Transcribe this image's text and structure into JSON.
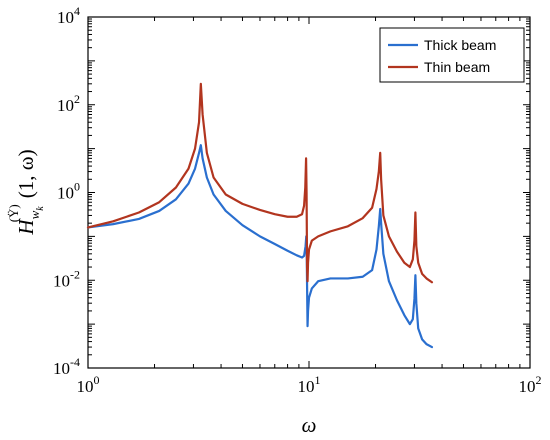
{
  "chart_data": {
    "type": "line",
    "x_scale": "log",
    "y_scale": "log",
    "xlim": [
      1,
      100
    ],
    "ylim": [
      0.0001,
      10000
    ],
    "grid": false,
    "legend_position": "top-right",
    "xlabel": "ω",
    "ylabel": "H_{w_k}^{(Ÿ)} (1, ω)",
    "ylabel_parts": {
      "base": "H",
      "subscript": "w",
      "subsubscript": "k",
      "superscript": "(Ÿ)",
      "args": "(1, ω)"
    },
    "x_ticks": [
      {
        "value": 1,
        "label_base": "10",
        "label_exp": "0"
      },
      {
        "value": 10,
        "label_base": "10",
        "label_exp": "1"
      },
      {
        "value": 100,
        "label_base": "10",
        "label_exp": "2"
      }
    ],
    "y_ticks": [
      {
        "value": 0.0001,
        "label_base": "10",
        "label_exp": "-4"
      },
      {
        "value": 0.01,
        "label_base": "10",
        "label_exp": "-2"
      },
      {
        "value": 1,
        "label_base": "10",
        "label_exp": "0"
      },
      {
        "value": 100,
        "label_base": "10",
        "label_exp": "2"
      },
      {
        "value": 10000,
        "label_base": "10",
        "label_exp": "4"
      }
    ],
    "series": [
      {
        "name": "Thick beam",
        "color": "#2a6fcf",
        "points": [
          [
            1.0,
            0.16
          ],
          [
            1.3,
            0.19
          ],
          [
            1.7,
            0.25
          ],
          [
            2.1,
            0.38
          ],
          [
            2.5,
            0.7
          ],
          [
            2.85,
            1.6
          ],
          [
            3.05,
            3.5
          ],
          [
            3.18,
            8.0
          ],
          [
            3.24,
            12.0
          ],
          [
            3.3,
            6.0
          ],
          [
            3.45,
            2.2
          ],
          [
            3.7,
            0.9
          ],
          [
            4.2,
            0.38
          ],
          [
            5.0,
            0.18
          ],
          [
            6.0,
            0.1
          ],
          [
            7.0,
            0.067
          ],
          [
            8.0,
            0.047
          ],
          [
            8.8,
            0.037
          ],
          [
            9.3,
            0.033
          ],
          [
            9.5,
            0.036
          ],
          [
            9.65,
            0.06
          ],
          [
            9.72,
            0.1
          ],
          [
            9.76,
            0.05
          ],
          [
            9.8,
            0.008
          ],
          [
            9.85,
            0.0009
          ],
          [
            9.9,
            0.002
          ],
          [
            10.0,
            0.004
          ],
          [
            10.3,
            0.0065
          ],
          [
            11.0,
            0.0095
          ],
          [
            12.5,
            0.011
          ],
          [
            15.0,
            0.011
          ],
          [
            17.5,
            0.012
          ],
          [
            19.3,
            0.017
          ],
          [
            20.2,
            0.05
          ],
          [
            20.7,
            0.17
          ],
          [
            21.0,
            0.42
          ],
          [
            21.2,
            0.2
          ],
          [
            21.7,
            0.04
          ],
          [
            23.0,
            0.0095
          ],
          [
            25.0,
            0.0035
          ],
          [
            27.0,
            0.0016
          ],
          [
            28.6,
            0.001
          ],
          [
            29.5,
            0.0013
          ],
          [
            30.0,
            0.0038
          ],
          [
            30.3,
            0.013
          ],
          [
            30.6,
            0.003
          ],
          [
            31.2,
            0.0008
          ],
          [
            32.5,
            0.00045
          ],
          [
            34.0,
            0.00035
          ],
          [
            36.0,
            0.0003
          ]
        ]
      },
      {
        "name": "Thin beam",
        "color": "#b2351f",
        "points": [
          [
            1.0,
            0.16
          ],
          [
            1.3,
            0.22
          ],
          [
            1.7,
            0.35
          ],
          [
            2.1,
            0.6
          ],
          [
            2.5,
            1.3
          ],
          [
            2.85,
            3.5
          ],
          [
            3.05,
            10.0
          ],
          [
            3.18,
            40.0
          ],
          [
            3.24,
            300.0
          ],
          [
            3.3,
            60.0
          ],
          [
            3.45,
            8.0
          ],
          [
            3.7,
            2.2
          ],
          [
            4.2,
            0.9
          ],
          [
            5.0,
            0.55
          ],
          [
            6.0,
            0.4
          ],
          [
            7.0,
            0.32
          ],
          [
            8.0,
            0.28
          ],
          [
            8.8,
            0.28
          ],
          [
            9.3,
            0.32
          ],
          [
            9.5,
            0.5
          ],
          [
            9.62,
            1.3
          ],
          [
            9.7,
            6.0
          ],
          [
            9.75,
            1.0
          ],
          [
            9.8,
            0.02
          ],
          [
            9.85,
            0.0095
          ],
          [
            9.9,
            0.025
          ],
          [
            10.0,
            0.05
          ],
          [
            10.3,
            0.08
          ],
          [
            11.0,
            0.1
          ],
          [
            12.5,
            0.13
          ],
          [
            15.0,
            0.17
          ],
          [
            17.5,
            0.26
          ],
          [
            19.3,
            0.45
          ],
          [
            20.2,
            1.2
          ],
          [
            20.7,
            3.0
          ],
          [
            21.0,
            8.0
          ],
          [
            21.2,
            2.0
          ],
          [
            21.7,
            0.3
          ],
          [
            23.0,
            0.1
          ],
          [
            25.0,
            0.045
          ],
          [
            27.0,
            0.025
          ],
          [
            28.6,
            0.02
          ],
          [
            29.5,
            0.03
          ],
          [
            30.0,
            0.08
          ],
          [
            30.3,
            0.35
          ],
          [
            30.6,
            0.06
          ],
          [
            31.2,
            0.025
          ],
          [
            32.5,
            0.014
          ],
          [
            34.0,
            0.011
          ],
          [
            36.0,
            0.009
          ]
        ]
      }
    ]
  }
}
